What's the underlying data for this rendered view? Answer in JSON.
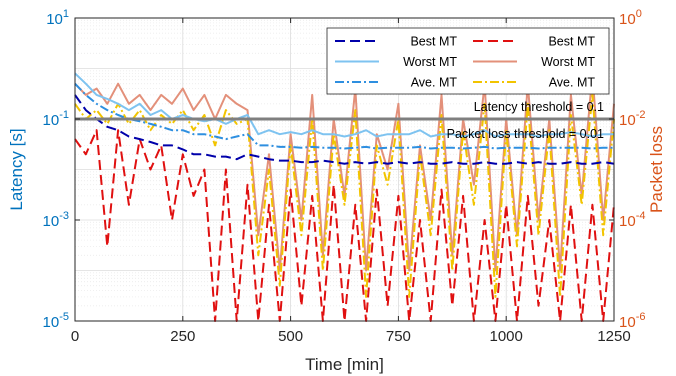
{
  "chart_data": {
    "type": "line",
    "xlabel": "Time [min]",
    "ylabel_left": "Latency [s]",
    "ylabel_right": "Packet loss",
    "xlim": [
      0,
      1250
    ],
    "ylim_left": [
      1e-05,
      10
    ],
    "ylim_right": [
      1e-06,
      1
    ],
    "yscale": "log",
    "grid": true,
    "legend_position": "top-right",
    "x_ticks": [
      "0",
      "250",
      "500",
      "750",
      "1000",
      "1250"
    ],
    "y_left_ticks": [
      {
        "base": "10",
        "exp": "-5"
      },
      {
        "base": "10",
        "exp": "-3"
      },
      {
        "base": "10",
        "exp": "-1"
      },
      {
        "base": "10",
        "exp": "1"
      }
    ],
    "y_right_ticks": [
      {
        "base": "10",
        "exp": "-6"
      },
      {
        "base": "10",
        "exp": "-4"
      },
      {
        "base": "10",
        "exp": "-2"
      },
      {
        "base": "10",
        "exp": "0"
      }
    ],
    "thresholds": [
      {
        "label": "Latency threshold = 0.1",
        "axis": "left",
        "value": 0.1
      },
      {
        "label": "Packet loss threshold = 0.01",
        "axis": "right",
        "value": 0.01
      }
    ],
    "colors": {
      "latency_best": "#0000AA",
      "latency_worst": "#7EC3F0",
      "latency_ave": "#2E8FE0",
      "loss_best": "#E01010",
      "loss_worst": "#E3907A",
      "loss_ave": "#F2C400",
      "threshold": "#7F7F7F",
      "left_axis": "#0072BD",
      "right_axis": "#D95319"
    },
    "x": [
      0,
      25,
      50,
      75,
      100,
      125,
      150,
      175,
      200,
      225,
      250,
      275,
      300,
      325,
      350,
      375,
      400,
      425,
      450,
      475,
      500,
      525,
      550,
      575,
      600,
      625,
      650,
      675,
      700,
      725,
      750,
      775,
      800,
      825,
      850,
      875,
      900,
      925,
      950,
      975,
      1000,
      1025,
      1050,
      1075,
      1100,
      1125,
      1150,
      1175,
      1200,
      1225,
      1250
    ],
    "series": [
      {
        "name": "Best MT",
        "axis": "left",
        "style": "dashed",
        "values": [
          0.3,
          0.15,
          0.1,
          0.07,
          0.06,
          0.045,
          0.04,
          0.035,
          0.03,
          0.03,
          0.025,
          0.02,
          0.02,
          0.018,
          0.018,
          0.016,
          0.02,
          0.018,
          0.016,
          0.015,
          0.015,
          0.014,
          0.014,
          0.015,
          0.014,
          0.013,
          0.014,
          0.013,
          0.014,
          0.013,
          0.014,
          0.013,
          0.014,
          0.013,
          0.013,
          0.014,
          0.013,
          0.013,
          0.014,
          0.013,
          0.013,
          0.014,
          0.013,
          0.014,
          0.013,
          0.013,
          0.014,
          0.013,
          0.013,
          0.014,
          0.013
        ]
      },
      {
        "name": "Worst MT",
        "axis": "left",
        "style": "solid",
        "values": [
          0.8,
          0.5,
          0.3,
          0.25,
          0.2,
          0.15,
          0.2,
          0.12,
          0.15,
          0.1,
          0.12,
          0.1,
          0.09,
          0.1,
          0.08,
          0.1,
          0.12,
          0.05,
          0.06,
          0.05,
          0.055,
          0.05,
          0.06,
          0.05,
          0.05,
          0.045,
          0.05,
          0.06,
          0.045,
          0.05,
          0.05,
          0.05,
          0.06,
          0.045,
          0.05,
          0.05,
          0.045,
          0.05,
          0.06,
          0.045,
          0.05,
          0.05,
          0.05,
          0.045,
          0.05,
          0.05,
          0.055,
          0.05,
          0.045,
          0.05,
          0.05
        ]
      },
      {
        "name": "Ave. MT",
        "axis": "left",
        "style": "dashdot",
        "values": [
          0.5,
          0.3,
          0.2,
          0.15,
          0.12,
          0.1,
          0.09,
          0.08,
          0.07,
          0.06,
          0.06,
          0.05,
          0.05,
          0.045,
          0.04,
          0.045,
          0.05,
          0.03,
          0.03,
          0.028,
          0.028,
          0.027,
          0.028,
          0.027,
          0.027,
          0.026,
          0.027,
          0.028,
          0.026,
          0.027,
          0.027,
          0.027,
          0.028,
          0.026,
          0.027,
          0.027,
          0.026,
          0.027,
          0.028,
          0.026,
          0.027,
          0.027,
          0.027,
          0.026,
          0.027,
          0.027,
          0.027,
          0.027,
          0.026,
          0.027,
          0.027
        ]
      },
      {
        "name": "Best MT",
        "axis": "right",
        "style": "dashed",
        "values": [
          0.004,
          0.002,
          0.006,
          3e-05,
          0.006,
          0.0002,
          0.004,
          0.001,
          0.003,
          0.0001,
          0.002,
          0.0003,
          0.001,
          1e-06,
          0.001,
          1e-06,
          0.0005,
          1e-06,
          0.0002,
          1e-06,
          0.0004,
          2e-06,
          0.0003,
          1e-06,
          0.0005,
          1e-06,
          0.0002,
          1e-06,
          0.0004,
          2e-06,
          0.0003,
          1e-06,
          0.0001,
          1e-06,
          0.0004,
          2e-06,
          0.0003,
          1e-06,
          0.0001,
          1e-06,
          0.0002,
          1e-06,
          0.0003,
          2e-06,
          0.0001,
          1e-06,
          0.0002,
          1e-06,
          0.0002,
          1e-06,
          0.0002
        ]
      },
      {
        "name": "Worst MT",
        "axis": "right",
        "style": "solid",
        "values": [
          0.05,
          0.03,
          0.04,
          0.02,
          0.05,
          0.02,
          0.03,
          0.015,
          0.03,
          0.02,
          0.04,
          0.015,
          0.03,
          0.01,
          0.03,
          0.02,
          0.015,
          5e-05,
          0.002,
          1e-05,
          0.005,
          0.0001,
          0.03,
          2e-05,
          0.01,
          0.0003,
          0.04,
          1e-05,
          0.005,
          0.001,
          0.02,
          1e-05,
          0.003,
          0.0001,
          0.03,
          2e-05,
          0.01,
          0.0005,
          0.05,
          1e-05,
          0.01,
          5e-05,
          0.05,
          0.0001,
          0.01,
          1e-05,
          0.03,
          0.0003,
          0.08,
          0.0001,
          0.02
        ]
      },
      {
        "name": "Ave. MT",
        "axis": "right",
        "style": "dashdot",
        "values": [
          0.02,
          0.01,
          0.015,
          0.008,
          0.02,
          0.008,
          0.015,
          0.006,
          0.012,
          0.008,
          0.015,
          0.006,
          0.012,
          0.003,
          0.015,
          0.008,
          0.01,
          2e-05,
          0.001,
          5e-06,
          0.003,
          5e-05,
          0.01,
          1e-05,
          0.005,
          0.0002,
          0.015,
          3e-06,
          0.003,
          0.0005,
          0.01,
          3e-06,
          0.002,
          5e-05,
          0.012,
          1e-05,
          0.006,
          0.0002,
          0.02,
          3e-06,
          0.006,
          3e-05,
          0.02,
          5e-05,
          0.006,
          3e-06,
          0.012,
          0.0002,
          0.03,
          5e-05,
          0.01
        ]
      }
    ]
  }
}
